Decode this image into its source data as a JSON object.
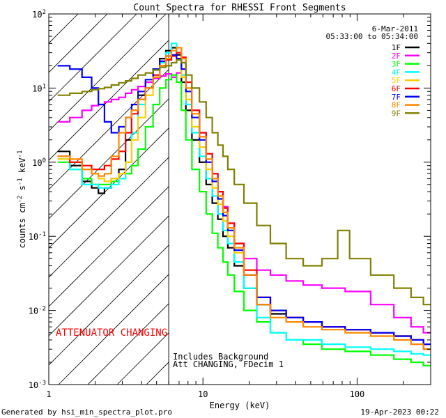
{
  "chart_data": {
    "type": "line",
    "title": "Count Spectra for RHESSI Front Segments",
    "xlabel": "Energy (keV)",
    "ylabel": "counts cm^-2 s^-1 keV^-1",
    "xscale": "log",
    "yscale": "log",
    "xlim": [
      1,
      300
    ],
    "ylim": [
      0.001,
      100
    ],
    "x_ticks": [
      {
        "value": 1,
        "label": "1"
      },
      {
        "value": 10,
        "label": "10"
      },
      {
        "value": 100,
        "label": "100"
      }
    ],
    "y_ticks": [
      {
        "value": 100,
        "mantissa": "10",
        "exponent": "2"
      },
      {
        "value": 10,
        "mantissa": "10",
        "exponent": "1"
      },
      {
        "value": 1,
        "mantissa": "10",
        "exponent": "0"
      },
      {
        "value": 0.1,
        "mantissa": "10",
        "exponent": "-1"
      },
      {
        "value": 0.01,
        "mantissa": "10",
        "exponent": "-2"
      },
      {
        "value": 0.001,
        "mantissa": "10",
        "exponent": "-3"
      }
    ],
    "date": "6-Mar-2011",
    "time_range": "05:33:00 to 05:34:00",
    "attenuator_label": "ATTENUATOR CHANGING",
    "annotation_line1": "Includes Background",
    "annotation_line2": "Att CHANGING, FDecim 1",
    "shaded_region_max_keV": 6,
    "series": [
      {
        "name": "1F",
        "color": "#000000",
        "x": [
          1.25,
          1.5,
          1.8,
          2.0,
          2.2,
          2.4,
          2.7,
          3.0,
          3.3,
          3.6,
          4.0,
          4.5,
          5.0,
          5.5,
          6.0,
          6.5,
          7.0,
          7.5,
          8.0,
          9.0,
          10.0,
          11.0,
          12.0,
          13.0,
          14.0,
          15.0,
          17.0,
          20.0,
          25.0,
          30.0,
          40.0,
          50.0,
          70.0,
          100.0,
          150.0,
          200.0,
          250.0,
          290.0
        ],
        "y": [
          1.4,
          0.9,
          0.55,
          0.45,
          0.38,
          0.45,
          0.6,
          0.8,
          2.0,
          5.0,
          8.0,
          12.0,
          18.0,
          25.0,
          32.0,
          35.0,
          28.0,
          12.0,
          5.0,
          2.0,
          1.0,
          0.5,
          0.28,
          0.17,
          0.1,
          0.07,
          0.04,
          0.02,
          0.012,
          0.009,
          0.008,
          0.007,
          0.006,
          0.0055,
          0.005,
          0.0045,
          0.004,
          0.003
        ]
      },
      {
        "name": "2F",
        "color": "#ff00ff",
        "x": [
          1.25,
          1.5,
          1.8,
          2.0,
          2.2,
          2.4,
          2.7,
          3.0,
          3.3,
          3.6,
          4.0,
          4.5,
          5.0,
          5.5,
          6.0,
          6.5,
          7.0,
          7.5,
          8.0,
          9.0,
          10.0,
          11.0,
          12.0,
          13.0,
          14.0,
          15.0,
          17.0,
          20.0,
          25.0,
          30.0,
          40.0,
          50.0,
          70.0,
          100.0,
          150.0,
          200.0,
          250.0,
          290.0
        ],
        "y": [
          3.5,
          4.0,
          5.0,
          5.8,
          6.0,
          6.5,
          7.0,
          7.5,
          8.5,
          9.5,
          10.5,
          12.0,
          13.5,
          14.5,
          15.5,
          14.0,
          16.0,
          18.0,
          12.0,
          5.0,
          2.5,
          1.3,
          0.7,
          0.4,
          0.25,
          0.15,
          0.08,
          0.05,
          0.035,
          0.03,
          0.025,
          0.022,
          0.02,
          0.018,
          0.012,
          0.008,
          0.006,
          0.005
        ]
      },
      {
        "name": "3F",
        "color": "#00ff00",
        "x": [
          1.25,
          1.5,
          1.8,
          2.0,
          2.2,
          2.4,
          2.7,
          3.0,
          3.3,
          3.6,
          4.0,
          4.5,
          5.0,
          5.5,
          6.0,
          6.5,
          7.0,
          7.5,
          8.0,
          9.0,
          10.0,
          11.0,
          12.0,
          13.0,
          14.0,
          15.0,
          17.0,
          20.0,
          25.0,
          30.0,
          40.0,
          50.0,
          70.0,
          100.0,
          150.0,
          200.0,
          250.0,
          290.0
        ],
        "y": [
          1.0,
          0.8,
          0.6,
          0.5,
          0.5,
          0.5,
          0.55,
          0.6,
          0.7,
          0.9,
          1.5,
          3.0,
          6.0,
          10.0,
          13.0,
          15.0,
          12.0,
          5.0,
          2.0,
          0.8,
          0.4,
          0.2,
          0.11,
          0.07,
          0.045,
          0.03,
          0.018,
          0.01,
          0.007,
          0.005,
          0.004,
          0.0035,
          0.003,
          0.0028,
          0.0025,
          0.0022,
          0.002,
          0.0018
        ]
      },
      {
        "name": "4F",
        "color": "#00ffff",
        "x": [
          1.25,
          1.5,
          1.8,
          2.0,
          2.2,
          2.4,
          2.7,
          3.0,
          3.3,
          3.6,
          4.0,
          4.5,
          5.0,
          5.5,
          6.0,
          6.5,
          7.0,
          7.5,
          8.0,
          9.0,
          10.0,
          11.0,
          12.0,
          13.0,
          14.0,
          15.0,
          17.0,
          20.0,
          25.0,
          30.0,
          40.0,
          50.0,
          70.0,
          100.0,
          150.0,
          200.0,
          250.0,
          290.0
        ],
        "y": [
          1.1,
          0.8,
          0.5,
          0.5,
          0.45,
          0.45,
          0.5,
          0.6,
          1.0,
          2.5,
          6.0,
          10.0,
          15.0,
          22.0,
          30.0,
          40.0,
          30.0,
          15.0,
          6.0,
          2.5,
          1.2,
          0.6,
          0.35,
          0.2,
          0.12,
          0.08,
          0.045,
          0.02,
          0.008,
          0.005,
          0.004,
          0.004,
          0.0035,
          0.0032,
          0.003,
          0.0028,
          0.0026,
          0.0025
        ]
      },
      {
        "name": "5F",
        "color": "#ffcc00",
        "x": [
          1.25,
          1.5,
          1.8,
          2.0,
          2.2,
          2.4,
          2.7,
          3.0,
          3.3,
          3.6,
          4.0,
          4.5,
          5.0,
          5.5,
          6.0,
          6.5,
          7.0,
          7.5,
          8.0,
          9.0,
          10.0,
          11.0,
          12.0,
          13.0,
          14.0,
          15.0,
          17.0,
          20.0,
          25.0,
          30.0,
          40.0,
          50.0,
          70.0,
          100.0,
          150.0,
          200.0,
          250.0,
          290.0
        ],
        "y": [
          1.1,
          1.0,
          0.8,
          0.7,
          0.6,
          0.55,
          0.6,
          0.7,
          1.0,
          2.0,
          4.0,
          8.0,
          14.0,
          20.0,
          25.0,
          28.0,
          25.0,
          14.0,
          7.0,
          3.0,
          1.6,
          0.8,
          0.45,
          0.27,
          0.16,
          0.1,
          0.06,
          0.03,
          0.015,
          0.01,
          0.008,
          0.007,
          0.006,
          0.0055,
          0.005,
          0.0045,
          0.004,
          0.0035
        ]
      },
      {
        "name": "6F",
        "color": "#ff0000",
        "x": [
          1.25,
          1.5,
          1.8,
          2.0,
          2.2,
          2.4,
          2.7,
          3.0,
          3.3,
          3.6,
          4.0,
          4.5,
          5.0,
          5.5,
          6.0,
          6.5,
          7.0,
          7.5,
          8.0,
          9.0,
          10.0,
          11.0,
          12.0,
          13.0,
          14.0,
          15.0,
          17.0,
          20.0,
          25.0,
          30.0,
          40.0,
          50.0,
          70.0,
          100.0,
          150.0,
          200.0,
          250.0,
          290.0
        ],
        "y": [
          1.2,
          1.0,
          0.9,
          0.8,
          0.8,
          0.9,
          1.1,
          1.4,
          2.5,
          4.5,
          7.0,
          10.0,
          15.0,
          20.0,
          24.0,
          27.0,
          30.0,
          26.0,
          12.0,
          5.0,
          2.5,
          1.3,
          0.7,
          0.4,
          0.24,
          0.15,
          0.08,
          0.035,
          0.015,
          0.01,
          0.008,
          0.007,
          0.006,
          0.0055,
          0.005,
          0.0045,
          0.004,
          0.0035
        ]
      },
      {
        "name": "7F",
        "color": "#0000ff",
        "x": [
          1.25,
          1.5,
          1.8,
          2.0,
          2.2,
          2.4,
          2.7,
          3.0,
          3.3,
          3.6,
          4.0,
          4.5,
          5.0,
          5.5,
          6.0,
          6.5,
          7.0,
          7.5,
          8.0,
          9.0,
          10.0,
          11.0,
          12.0,
          13.0,
          14.0,
          15.0,
          17.0,
          20.0,
          25.0,
          30.0,
          40.0,
          50.0,
          70.0,
          100.0,
          150.0,
          200.0,
          250.0,
          290.0
        ],
        "y": [
          20.0,
          18.0,
          14.0,
          10.0,
          6.0,
          3.5,
          2.5,
          3.0,
          4.0,
          6.0,
          9.0,
          13.0,
          18.0,
          23.0,
          27.0,
          28.0,
          25.0,
          18.0,
          9.0,
          4.0,
          2.0,
          1.0,
          0.55,
          0.32,
          0.19,
          0.12,
          0.065,
          0.03,
          0.015,
          0.01,
          0.008,
          0.007,
          0.006,
          0.0055,
          0.005,
          0.0045,
          0.004,
          0.0035
        ]
      },
      {
        "name": "8F",
        "color": "#ff8800",
        "x": [
          1.25,
          1.5,
          1.8,
          2.0,
          2.2,
          2.4,
          2.7,
          3.0,
          3.3,
          3.6,
          4.0,
          4.5,
          5.0,
          5.5,
          6.0,
          6.5,
          7.0,
          7.5,
          8.0,
          9.0,
          10.0,
          11.0,
          12.0,
          13.0,
          14.0,
          15.0,
          17.0,
          20.0,
          25.0,
          30.0,
          40.0,
          50.0,
          70.0,
          100.0,
          150.0,
          200.0,
          250.0,
          290.0
        ],
        "y": [
          1.2,
          1.1,
          0.8,
          0.7,
          0.65,
          0.7,
          1.2,
          2.5,
          4.0,
          5.0,
          7.0,
          10.0,
          14.0,
          20.0,
          27.0,
          32.0,
          35.0,
          25.0,
          10.0,
          4.5,
          2.2,
          1.1,
          0.6,
          0.35,
          0.21,
          0.13,
          0.07,
          0.03,
          0.012,
          0.008,
          0.007,
          0.006,
          0.0055,
          0.005,
          0.0045,
          0.004,
          0.0035,
          0.003
        ]
      },
      {
        "name": "9F",
        "color": "#808000",
        "x": [
          1.25,
          1.5,
          1.8,
          2.0,
          2.2,
          2.4,
          2.7,
          3.0,
          3.3,
          3.6,
          4.0,
          4.5,
          5.0,
          5.5,
          6.0,
          6.5,
          7.0,
          7.5,
          8.0,
          9.0,
          10.0,
          11.0,
          12.0,
          13.0,
          14.0,
          15.0,
          17.0,
          20.0,
          25.0,
          30.0,
          40.0,
          50.0,
          70.0,
          80.0,
          100.0,
          150.0,
          200.0,
          250.0,
          290.0
        ],
        "y": [
          8.0,
          8.5,
          9.0,
          9.5,
          9.8,
          10.2,
          11.0,
          11.8,
          12.5,
          13.5,
          15.0,
          16.0,
          17.5,
          19.0,
          20.0,
          22.0,
          24.0,
          22.0,
          15.0,
          10.0,
          6.5,
          4.0,
          2.5,
          1.7,
          1.2,
          0.8,
          0.5,
          0.28,
          0.14,
          0.08,
          0.05,
          0.04,
          0.05,
          0.12,
          0.05,
          0.03,
          0.02,
          0.015,
          0.012
        ]
      }
    ]
  },
  "footer": {
    "generator_text": "Generated by hsi_min_spectra_plot.pro",
    "timestamp": "19-Apr-2023 00:22"
  }
}
